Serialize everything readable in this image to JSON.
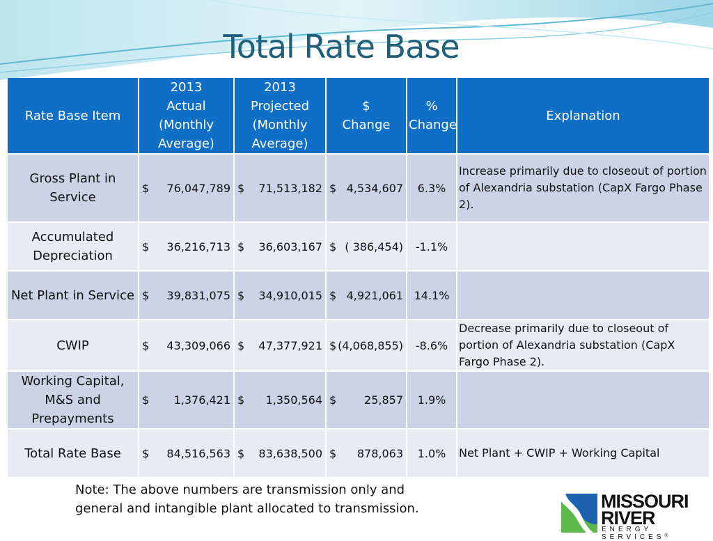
{
  "title": "Total Rate Base",
  "colors": {
    "header": "#0f6ec6",
    "row_dark": "#cdd3e6",
    "row_light": "#e8ebf4",
    "title": "#1f5f7a"
  },
  "table": {
    "headers": {
      "item": "Rate Base Item",
      "actual": [
        "2013",
        "Actual",
        "(Monthly",
        "Average)"
      ],
      "projected": [
        "2013",
        "Projected",
        "(Monthly",
        "Average)"
      ],
      "change": [
        "$",
        "Change"
      ],
      "pct": [
        "%",
        "Change"
      ],
      "explanation": "Explanation"
    },
    "rows": [
      {
        "item": "Gross Plant in Service",
        "actual_cur": "$",
        "actual": "76,047,789",
        "projected_cur": "$",
        "projected": "71,513,182",
        "change_cur": "$",
        "change": "4,534,607",
        "pct": "6.3%",
        "explanation": "Increase primarily due to closeout of portion of Alexandria substation (CapX Fargo Phase 2)."
      },
      {
        "item": "Accumulated Depreciation",
        "actual_cur": "$",
        "actual": "36,216,713",
        "projected_cur": "$",
        "projected": "36,603,167",
        "change_cur": "$",
        "change": "( 386,454)",
        "pct": "-1.1%",
        "explanation": ""
      },
      {
        "item": "Net Plant in Service",
        "actual_cur": "$",
        "actual": "39,831,075",
        "projected_cur": "$",
        "projected": "34,910,015",
        "change_cur": "$",
        "change": "4,921,061",
        "pct": "14.1%",
        "explanation": ""
      },
      {
        "item": "CWIP",
        "actual_cur": "$",
        "actual": "43,309,066",
        "projected_cur": "$",
        "projected": "47,377,921",
        "change_cur": "$",
        "change": "(4,068,855)",
        "pct": "-8.6%",
        "explanation": "Decrease primarily due to closeout of portion of Alexandria substation (CapX Fargo Phase 2)."
      },
      {
        "item": "Working Capital, M&S and Prepayments",
        "actual_cur": "$",
        "actual": "1,376,421",
        "projected_cur": "$",
        "projected": "1,350,564",
        "change_cur": "$",
        "change": "25,857",
        "pct": "1.9%",
        "explanation": ""
      },
      {
        "item": "Total Rate Base",
        "actual_cur": "$",
        "actual": "84,516,563",
        "projected_cur": "$",
        "projected": "83,638,500",
        "change_cur": "$",
        "change": "878,063",
        "pct": "1.0%",
        "explanation": "Net Plant + CWIP + Working Capital"
      }
    ]
  },
  "note": "Note: The above numbers are transmission only and general and intangible plant allocated to transmission.",
  "logo": {
    "line1": "MISSOURI",
    "line2": "RIVER",
    "line3": "ENERGY SERVICES",
    "registered": "®"
  }
}
